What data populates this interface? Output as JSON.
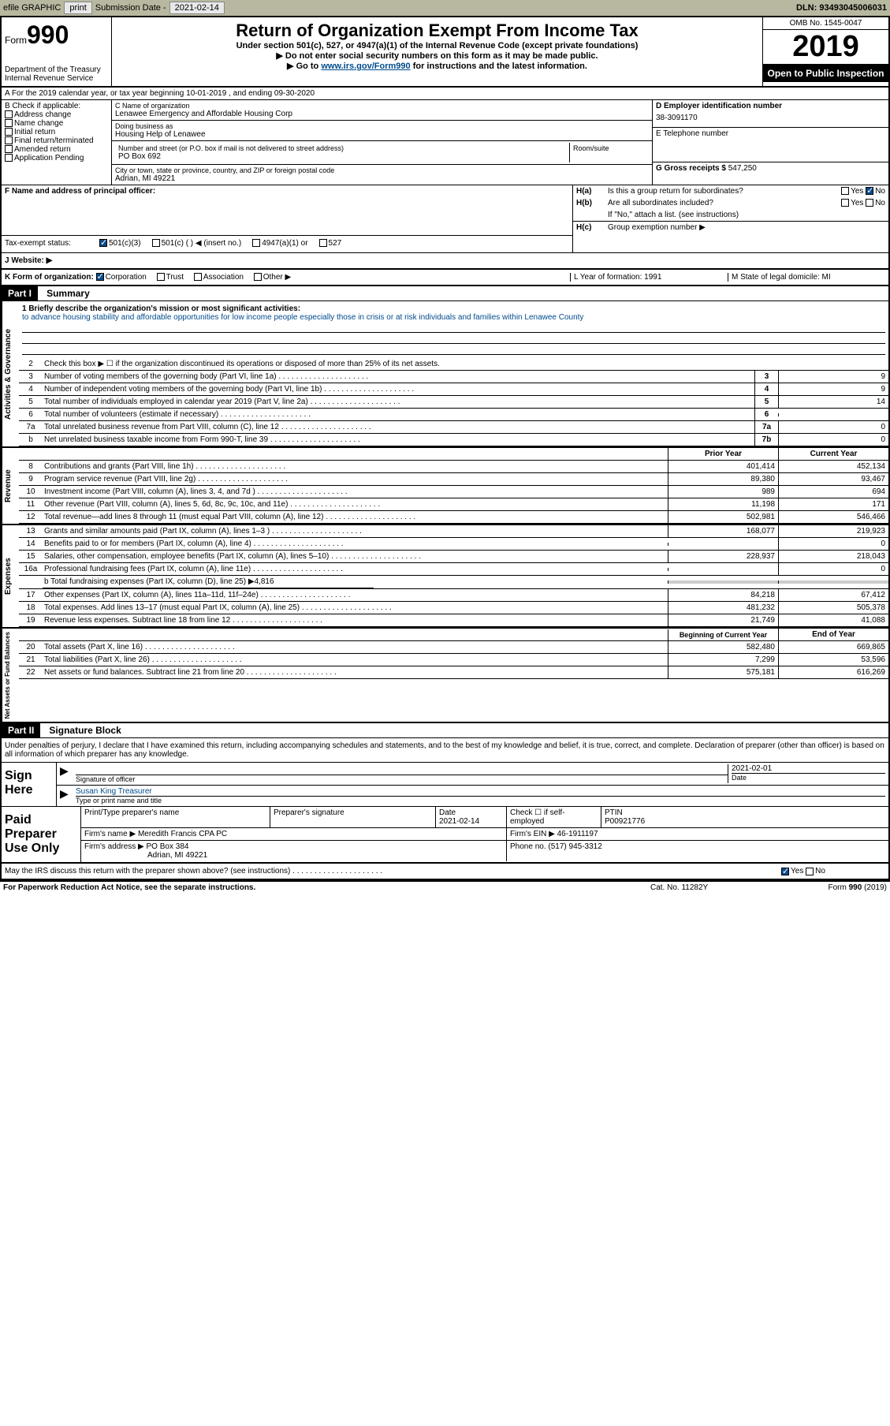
{
  "topbar": {
    "efile": "efile GRAPHIC",
    "print": "print",
    "sub_label": "Submission Date -",
    "sub_date": "2021-02-14",
    "dln": "DLN: 93493045006031"
  },
  "header": {
    "form_word": "Form",
    "form_num": "990",
    "dept": "Department of the Treasury",
    "irs": "Internal Revenue Service",
    "title": "Return of Organization Exempt From Income Tax",
    "sub1": "Under section 501(c), 527, or 4947(a)(1) of the Internal Revenue Code (except private foundations)",
    "sub2": "▶ Do not enter social security numbers on this form as it may be made public.",
    "sub3_pre": "▶ Go to ",
    "sub3_link": "www.irs.gov/Form990",
    "sub3_post": " for instructions and the latest information.",
    "omb": "OMB No. 1545-0047",
    "year": "2019",
    "open": "Open to Public Inspection"
  },
  "row_a": "A For the 2019 calendar year, or tax year beginning 10-01-2019    , and ending 09-30-2020",
  "section_b": {
    "label": "B Check if applicable:",
    "items": [
      "Address change",
      "Name change",
      "Initial return",
      "Final return/terminated",
      "Amended return",
      "Application Pending"
    ]
  },
  "section_c": {
    "name_label": "C Name of organization",
    "name": "Lenawee Emergency and Affordable Housing Corp",
    "dba_label": "Doing business as",
    "dba": "Housing Help of Lenawee",
    "addr_label": "Number and street (or P.O. box if mail is not delivered to street address)",
    "addr": "PO Box 692",
    "room_label": "Room/suite",
    "city_label": "City or town, state or province, country, and ZIP or foreign postal code",
    "city": "Adrian, MI  49221"
  },
  "section_d": {
    "ein_label": "D Employer identification number",
    "ein": "38-3091170",
    "tel_label": "E Telephone number",
    "gross_label": "G Gross receipts $",
    "gross": "547,250"
  },
  "section_f": {
    "label": "F  Name and address of principal officer:"
  },
  "section_h": {
    "ha": "Is this a group return for subordinates?",
    "hb": "Are all subordinates included?",
    "hb_note": "If \"No,\" attach a list. (see instructions)",
    "hc": "Group exemption number ▶"
  },
  "tax_status": {
    "label": "Tax-exempt status:",
    "opts": [
      "501(c)(3)",
      "501(c) (  ) ◀ (insert no.)",
      "4947(a)(1) or",
      "527"
    ]
  },
  "website": {
    "label": "J   Website: ▶"
  },
  "row_k": {
    "label": "K Form of organization:",
    "opts": [
      "Corporation",
      "Trust",
      "Association",
      "Other ▶"
    ],
    "l": "L Year of formation: 1991",
    "m": "M State of legal domicile: MI"
  },
  "part1": {
    "header": "Part I",
    "title": "Summary",
    "mission_label": "1   Briefly describe the organization's mission or most significant activities:",
    "mission": "to advance housing stability and affordable opportunities for low income people especially those in crisis or at risk individuals and families within Lenawee County",
    "line2": "Check this box ▶ ☐ if the organization discontinued its operations or disposed of more than 25% of its net assets.",
    "gov_lines": [
      {
        "n": "3",
        "t": "Number of voting members of the governing body (Part VI, line 1a)",
        "b": "3",
        "v": "9"
      },
      {
        "n": "4",
        "t": "Number of independent voting members of the governing body (Part VI, line 1b)",
        "b": "4",
        "v": "9"
      },
      {
        "n": "5",
        "t": "Total number of individuals employed in calendar year 2019 (Part V, line 2a)",
        "b": "5",
        "v": "14"
      },
      {
        "n": "6",
        "t": "Total number of volunteers (estimate if necessary)",
        "b": "6",
        "v": ""
      },
      {
        "n": "7a",
        "t": "Total unrelated business revenue from Part VIII, column (C), line 12",
        "b": "7a",
        "v": "0"
      },
      {
        "n": "b",
        "t": "Net unrelated business taxable income from Form 990-T, line 39",
        "b": "7b",
        "v": "0"
      }
    ],
    "prior_label": "Prior Year",
    "current_label": "Current Year",
    "rev_lines": [
      {
        "n": "8",
        "t": "Contributions and grants (Part VIII, line 1h)",
        "p": "401,414",
        "c": "452,134"
      },
      {
        "n": "9",
        "t": "Program service revenue (Part VIII, line 2g)",
        "p": "89,380",
        "c": "93,467"
      },
      {
        "n": "10",
        "t": "Investment income (Part VIII, column (A), lines 3, 4, and 7d )",
        "p": "989",
        "c": "694"
      },
      {
        "n": "11",
        "t": "Other revenue (Part VIII, column (A), lines 5, 6d, 8c, 9c, 10c, and 11e)",
        "p": "11,198",
        "c": "171"
      },
      {
        "n": "12",
        "t": "Total revenue—add lines 8 through 11 (must equal Part VIII, column (A), line 12)",
        "p": "502,981",
        "c": "546,466"
      }
    ],
    "exp_lines": [
      {
        "n": "13",
        "t": "Grants and similar amounts paid (Part IX, column (A), lines 1–3 )",
        "p": "168,077",
        "c": "219,923"
      },
      {
        "n": "14",
        "t": "Benefits paid to or for members (Part IX, column (A), line 4)",
        "p": "",
        "c": "0"
      },
      {
        "n": "15",
        "t": "Salaries, other compensation, employee benefits (Part IX, column (A), lines 5–10)",
        "p": "228,937",
        "c": "218,043"
      },
      {
        "n": "16a",
        "t": "Professional fundraising fees (Part IX, column (A), line 11e)",
        "p": "",
        "c": "0"
      }
    ],
    "line16b": "b   Total fundraising expenses (Part IX, column (D), line 25) ▶4,816",
    "exp_lines2": [
      {
        "n": "17",
        "t": "Other expenses (Part IX, column (A), lines 11a–11d, 11f–24e)",
        "p": "84,218",
        "c": "67,412"
      },
      {
        "n": "18",
        "t": "Total expenses. Add lines 13–17 (must equal Part IX, column (A), line 25)",
        "p": "481,232",
        "c": "505,378"
      },
      {
        "n": "19",
        "t": "Revenue less expenses. Subtract line 18 from line 12",
        "p": "21,749",
        "c": "41,088"
      }
    ],
    "begin_label": "Beginning of Current Year",
    "end_label": "End of Year",
    "net_lines": [
      {
        "n": "20",
        "t": "Total assets (Part X, line 16)",
        "p": "582,480",
        "c": "669,865"
      },
      {
        "n": "21",
        "t": "Total liabilities (Part X, line 26)",
        "p": "7,299",
        "c": "53,596"
      },
      {
        "n": "22",
        "t": "Net assets or fund balances. Subtract line 21 from line 20",
        "p": "575,181",
        "c": "616,269"
      }
    ],
    "vtabs": {
      "gov": "Activities & Governance",
      "rev": "Revenue",
      "exp": "Expenses",
      "net": "Net Assets or Fund Balances"
    }
  },
  "part2": {
    "header": "Part II",
    "title": "Signature Block",
    "intro": "Under penalties of perjury, I declare that I have examined this return, including accompanying schedules and statements, and to the best of my knowledge and belief, it is true, correct, and complete. Declaration of preparer (other than officer) is based on all information of which preparer has any knowledge.",
    "sign_here": "Sign Here",
    "sig_officer": "Signature of officer",
    "sig_date": "2021-02-01",
    "date_label": "Date",
    "officer_name": "Susan King  Treasurer",
    "type_label": "Type or print name and title",
    "prep_label": "Paid Preparer Use Only",
    "prep_name_label": "Print/Type preparer's name",
    "prep_sig_label": "Preparer's signature",
    "prep_date_label": "Date",
    "prep_date": "2021-02-14",
    "check_label": "Check ☐ if self-employed",
    "ptin_label": "PTIN",
    "ptin": "P00921776",
    "firm_name_label": "Firm's name     ▶",
    "firm_name": "Meredith Francis CPA PC",
    "firm_ein_label": "Firm's EIN ▶",
    "firm_ein": "46-1911197",
    "firm_addr_label": "Firm's address ▶",
    "firm_addr": "PO Box 384",
    "firm_city": "Adrian, MI  49221",
    "phone_label": "Phone no.",
    "phone": "(517) 945-3312",
    "discuss": "May the IRS discuss this return with the preparer shown above? (see instructions)"
  },
  "footer": {
    "left": "For Paperwork Reduction Act Notice, see the separate instructions.",
    "mid": "Cat. No. 11282Y",
    "right": "Form 990 (2019)"
  }
}
